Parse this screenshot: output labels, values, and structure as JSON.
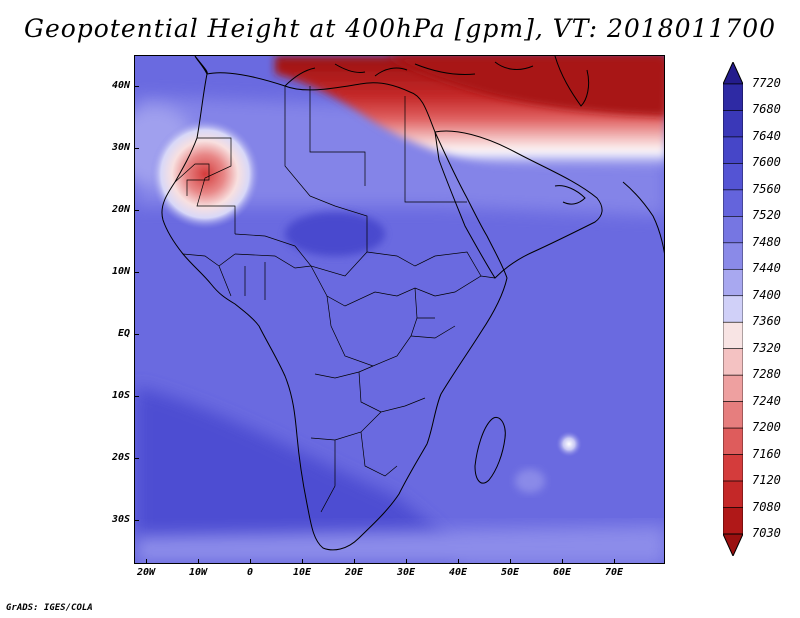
{
  "title": "Geopotential Height at 400hPa [gpm], VT: 2018011700",
  "credit": "GrADS: IGES/COLA",
  "map": {
    "lat_labels": [
      "40N",
      "30N",
      "20N",
      "10N",
      "EQ",
      "10S",
      "20S",
      "30S"
    ],
    "lon_labels": [
      "20W",
      "10W",
      "0",
      "10E",
      "20E",
      "30E",
      "40E",
      "50E",
      "60E",
      "70E"
    ]
  },
  "colorbar": {
    "labels": [
      "7720",
      "7680",
      "7640",
      "7600",
      "7560",
      "7520",
      "7480",
      "7440",
      "7400",
      "7360",
      "7320",
      "7280",
      "7240",
      "7200",
      "7160",
      "7120",
      "7080",
      "7030"
    ],
    "colors": [
      "#241c8c",
      "#2e2aa4",
      "#3a38b8",
      "#4646c8",
      "#5454d4",
      "#6464dc",
      "#7676e2",
      "#8a8ae8",
      "#a8a8f0",
      "#d0d0f8",
      "#f8e4e4",
      "#f4c2c2",
      "#eea0a0",
      "#e67e7e",
      "#de5c5c",
      "#d43c3c",
      "#c42828",
      "#b01818",
      "#9a1010"
    ]
  }
}
